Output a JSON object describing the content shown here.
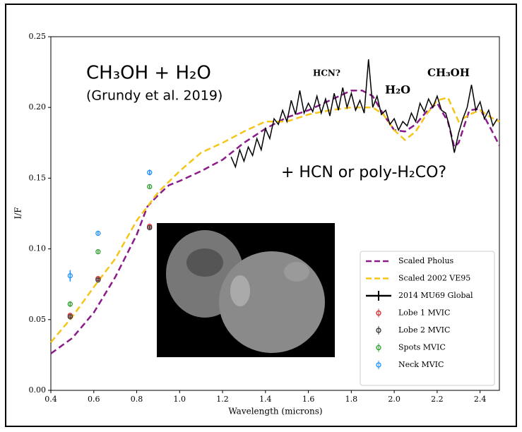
{
  "chart_data": {
    "type": "line",
    "xlabel": "Wavelength (microns)",
    "ylabel": "I/F",
    "xlim": [
      0.4,
      2.49
    ],
    "ylim": [
      0,
      0.25
    ],
    "xticks": [
      0.4,
      0.6,
      0.8,
      {
        "value": 1.0,
        "label": "1.0"
      },
      1.2,
      1.4,
      1.6,
      1.8,
      {
        "value": 2.0,
        "label": "2.0"
      },
      2.2,
      2.4
    ],
    "yticks": [
      {
        "value": 0,
        "label": "0.00"
      },
      0.05,
      {
        "value": 0.1,
        "label": "0.10"
      },
      0.15,
      {
        "value": 0.2,
        "label": "0.20"
      },
      0.25
    ],
    "annotations": [
      "CH₃OH + H₂O",
      "(Grundy et al. 2019)",
      "HCN?",
      "H₂O",
      "CH₃OH",
      "+ HCN or poly-H₂CO?"
    ],
    "legend": "lower right",
    "series": [
      {
        "name": "Scaled Pholus",
        "color": "#8b1a8b",
        "style": "dashed",
        "x": [
          0.4,
          0.5,
          0.6,
          0.7,
          0.8,
          0.85,
          0.9,
          0.95,
          1.0,
          1.1,
          1.2,
          1.3,
          1.4,
          1.5,
          1.6,
          1.7,
          1.8,
          1.85,
          1.9,
          1.95,
          2.0,
          2.05,
          2.1,
          2.15,
          2.2,
          2.25,
          2.28,
          2.3,
          2.35,
          2.4,
          2.45,
          2.49
        ],
        "values": [
          0.026,
          0.037,
          0.055,
          0.08,
          0.11,
          0.13,
          0.138,
          0.145,
          0.148,
          0.155,
          0.163,
          0.175,
          0.185,
          0.193,
          0.198,
          0.205,
          0.212,
          0.212,
          0.208,
          0.195,
          0.184,
          0.183,
          0.188,
          0.197,
          0.203,
          0.19,
          0.172,
          0.175,
          0.198,
          0.199,
          0.185,
          0.173
        ]
      },
      {
        "name": "Scaled 2002 VE95",
        "color": "#f5c518",
        "style": "dashed",
        "x": [
          0.4,
          0.5,
          0.6,
          0.7,
          0.8,
          0.9,
          1.0,
          1.1,
          1.2,
          1.3,
          1.4,
          1.5,
          1.6,
          1.7,
          1.8,
          1.9,
          1.95,
          2.0,
          2.05,
          2.1,
          2.15,
          2.2,
          2.25,
          2.3,
          2.35,
          2.4,
          2.45,
          2.49
        ],
        "values": [
          0.034,
          0.052,
          0.073,
          0.093,
          0.12,
          0.14,
          0.155,
          0.168,
          0.175,
          0.183,
          0.19,
          0.19,
          0.195,
          0.198,
          0.2,
          0.2,
          0.195,
          0.184,
          0.177,
          0.183,
          0.195,
          0.205,
          0.207,
          0.19,
          0.195,
          0.198,
          0.193,
          0.19
        ]
      },
      {
        "name": "2014 MU69 Global",
        "color": "#000000",
        "style": "solid",
        "x": [
          1.24,
          1.26,
          1.28,
          1.3,
          1.32,
          1.34,
          1.36,
          1.38,
          1.4,
          1.42,
          1.44,
          1.46,
          1.48,
          1.5,
          1.52,
          1.54,
          1.56,
          1.58,
          1.6,
          1.62,
          1.64,
          1.66,
          1.68,
          1.7,
          1.72,
          1.74,
          1.76,
          1.78,
          1.8,
          1.82,
          1.84,
          1.86,
          1.88,
          1.9,
          1.92,
          1.94,
          1.96,
          1.98,
          2.0,
          2.02,
          2.04,
          2.06,
          2.08,
          2.1,
          2.12,
          2.14,
          2.16,
          2.18,
          2.2,
          2.22,
          2.24,
          2.26,
          2.28,
          2.3,
          2.32,
          2.34,
          2.36,
          2.38,
          2.4,
          2.42,
          2.44,
          2.46,
          2.48
        ],
        "values": [
          0.165,
          0.158,
          0.17,
          0.162,
          0.172,
          0.166,
          0.178,
          0.17,
          0.185,
          0.178,
          0.192,
          0.188,
          0.198,
          0.19,
          0.205,
          0.195,
          0.212,
          0.196,
          0.203,
          0.197,
          0.208,
          0.196,
          0.206,
          0.194,
          0.21,
          0.198,
          0.214,
          0.2,
          0.21,
          0.198,
          0.205,
          0.196,
          0.234,
          0.2,
          0.208,
          0.195,
          0.198,
          0.188,
          0.192,
          0.184,
          0.19,
          0.187,
          0.196,
          0.19,
          0.203,
          0.197,
          0.206,
          0.2,
          0.208,
          0.198,
          0.196,
          0.185,
          0.168,
          0.182,
          0.192,
          0.2,
          0.216,
          0.198,
          0.204,
          0.192,
          0.198,
          0.187,
          0.192
        ]
      },
      {
        "name": "Lobe 1 MVIC",
        "color": "#d62728",
        "style": "marker",
        "x": [
          0.49,
          0.62,
          0.86
        ],
        "values": [
          0.053,
          0.079,
          0.116
        ],
        "errors": [
          0.001,
          0.001,
          0.001
        ]
      },
      {
        "name": "Lobe 2 MVIC",
        "color": "#333333",
        "style": "marker",
        "x": [
          0.49,
          0.62,
          0.86
        ],
        "values": [
          0.052,
          0.078,
          0.115
        ],
        "errors": [
          0.001,
          0.001,
          0.001
        ]
      },
      {
        "name": "Spots MVIC",
        "color": "#2ca02c",
        "style": "marker",
        "x": [
          0.49,
          0.62,
          0.86
        ],
        "values": [
          0.061,
          0.098,
          0.144
        ],
        "errors": [
          0.002,
          0.001,
          0.001
        ]
      },
      {
        "name": "Neck MVIC",
        "color": "#1e90ff",
        "style": "marker",
        "x": [
          0.49,
          0.62,
          0.86
        ],
        "values": [
          0.081,
          0.111,
          0.154
        ],
        "errors": [
          0.004,
          0.001,
          0.002
        ]
      }
    ]
  }
}
